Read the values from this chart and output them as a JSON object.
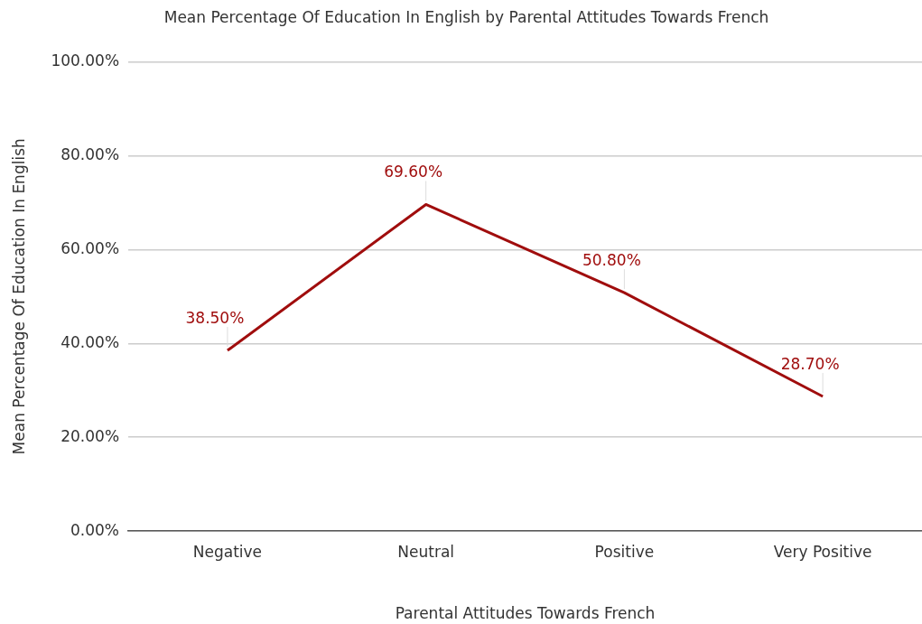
{
  "chart_data": {
    "type": "line",
    "title": "Mean Percentage Of Education In English by Parental Attitudes Towards French",
    "xlabel": "Parental Attitudes Towards French",
    "ylabel": "Mean Percentage Of Education In English",
    "categories": [
      "Negative",
      "Neutral",
      "Positive",
      "Very Positive"
    ],
    "series": [
      {
        "color": "#a00d0d",
        "values": [
          38.5,
          69.6,
          50.8,
          28.7
        ],
        "value_labels": [
          "38.50%",
          "69.60%",
          "50.80%",
          "28.70%"
        ]
      }
    ],
    "ylim": [
      0,
      100
    ],
    "yticks": [
      {
        "value": 0,
        "label": "0.00%"
      },
      {
        "value": 20,
        "label": "20.00%"
      },
      {
        "value": 40,
        "label": "40.00%"
      },
      {
        "value": 60,
        "label": "60.00%"
      },
      {
        "value": 80,
        "label": "80.00%"
      },
      {
        "value": 100,
        "label": "100.00%"
      }
    ],
    "grid": "y",
    "legend": false,
    "marker": "none",
    "line_style": "solid"
  }
}
